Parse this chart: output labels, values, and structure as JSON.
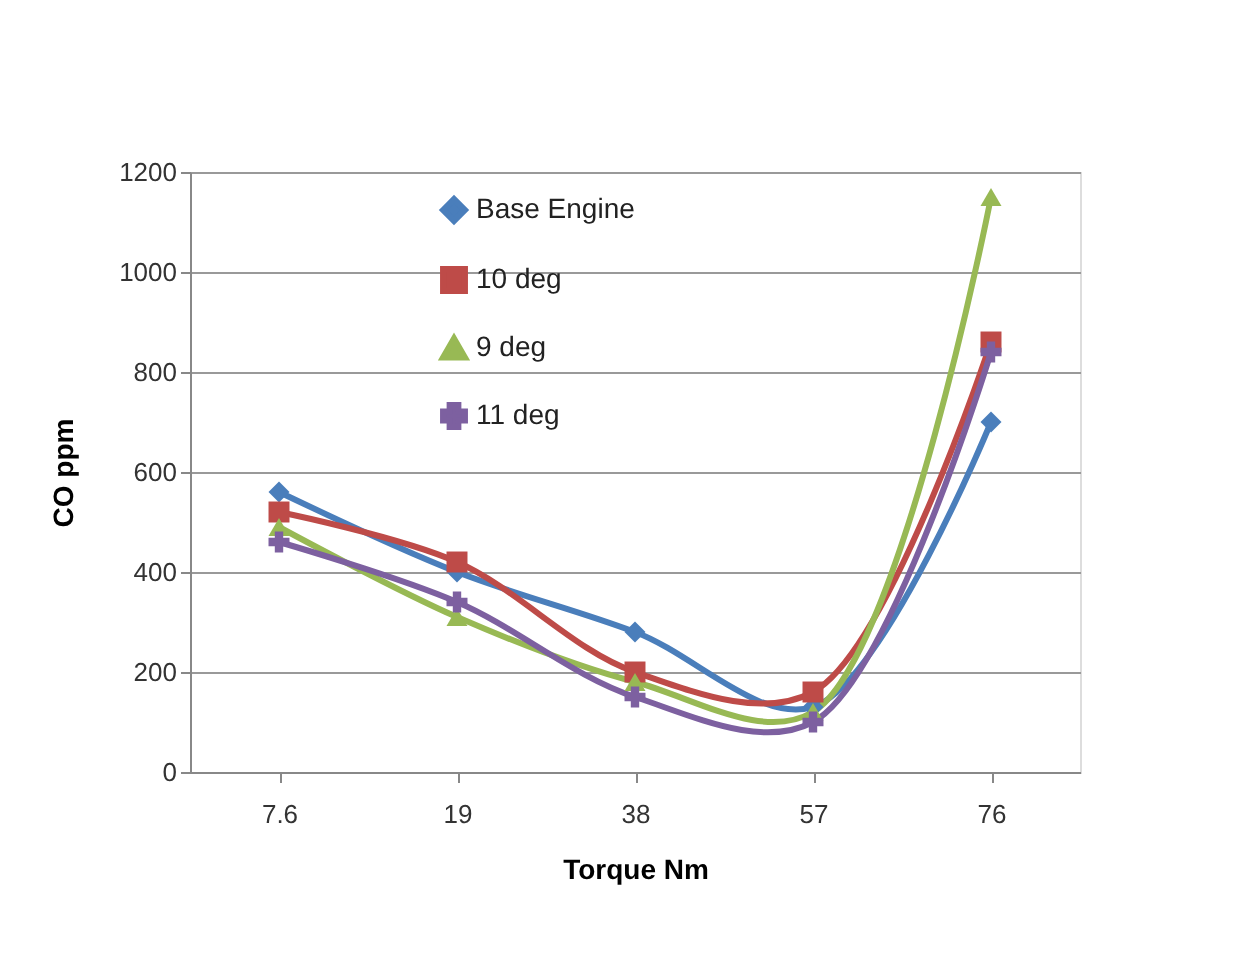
{
  "chart_data": {
    "type": "line",
    "xlabel": "Torque Nm",
    "ylabel": "CO ppm",
    "categories": [
      "7.6",
      "19",
      "38",
      "57",
      "76"
    ],
    "series": [
      {
        "name": "Base Engine",
        "color": "#4a7ebb",
        "marker": "diamond",
        "values": [
          560,
          400,
          280,
          130,
          700
        ]
      },
      {
        "name": "10 deg",
        "color": "#be4b48",
        "marker": "square",
        "values": [
          520,
          420,
          200,
          160,
          860
        ]
      },
      {
        "name": "9 deg",
        "color": "#98b954",
        "marker": "triangle",
        "values": [
          490,
          310,
          180,
          120,
          1150
        ]
      },
      {
        "name": "11 deg",
        "color": "#7d60a0",
        "marker": "cross",
        "values": [
          460,
          340,
          150,
          100,
          840
        ]
      }
    ],
    "ylim": [
      0,
      1200
    ],
    "yticks": [
      0,
      200,
      400,
      600,
      800,
      1000,
      1200
    ],
    "grid": "y",
    "legend": "top left",
    "line_style": "solid"
  }
}
